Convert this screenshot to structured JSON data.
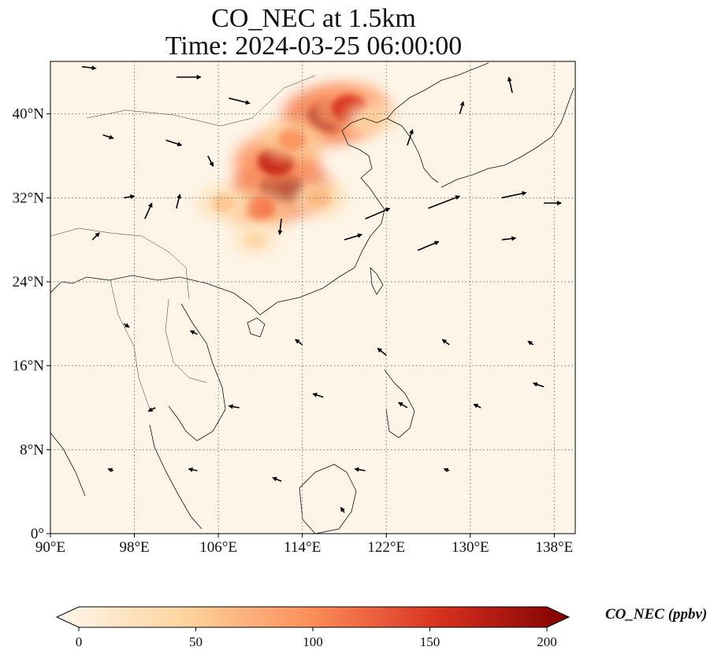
{
  "title": {
    "line1": "CO_NEC at 1.5km",
    "line2": "Time: 2024-03-25 06:00:00"
  },
  "map": {
    "extent": {
      "lon": [
        90,
        140
      ],
      "lat": [
        0,
        45
      ]
    },
    "lon_ticks": [
      {
        "v": 90,
        "label": "90°E"
      },
      {
        "v": 98,
        "label": "98°E"
      },
      {
        "v": 106,
        "label": "106°E"
      },
      {
        "v": 114,
        "label": "114°E"
      },
      {
        "v": 122,
        "label": "122°E"
      },
      {
        "v": 130,
        "label": "130°E"
      },
      {
        "v": 138,
        "label": "138°E"
      }
    ],
    "lat_ticks": [
      {
        "v": 0,
        "label": "0°"
      },
      {
        "v": 8,
        "label": "8°N"
      },
      {
        "v": 16,
        "label": "16°N"
      },
      {
        "v": 24,
        "label": "24°N"
      },
      {
        "v": 32,
        "label": "32°N"
      },
      {
        "v": 40,
        "label": "40°N"
      }
    ],
    "gridlines": true,
    "colormap": "OrRd"
  },
  "colorbar": {
    "label": "CO_NEC (ppbv)",
    "min": 0,
    "max": 200,
    "ticks": [
      0,
      50,
      100,
      150,
      200
    ],
    "colors": [
      "#fff7ec",
      "#fdd49e",
      "#fc8d59",
      "#d7301f",
      "#7f0000"
    ]
  },
  "chart_data": {
    "type": "heatmap",
    "variable": "CO_NEC",
    "units": "ppbv",
    "level": "1.5km",
    "time": "2024-03-25 06:00:00",
    "plumes": [
      {
        "lon": 116.5,
        "lat": 39.8,
        "value": 185
      },
      {
        "lon": 118.5,
        "lat": 40.5,
        "value": 150
      },
      {
        "lon": 112.0,
        "lat": 33.0,
        "value": 200
      },
      {
        "lon": 111.5,
        "lat": 35.5,
        "value": 160
      },
      {
        "lon": 110.0,
        "lat": 31.0,
        "value": 110
      },
      {
        "lon": 113.0,
        "lat": 37.5,
        "value": 95
      },
      {
        "lon": 106.5,
        "lat": 31.5,
        "value": 60
      },
      {
        "lon": 115.5,
        "lat": 32.0,
        "value": 70
      },
      {
        "lon": 120.5,
        "lat": 39.5,
        "value": 55
      },
      {
        "lon": 109.5,
        "lat": 28.0,
        "value": 45
      }
    ],
    "wind_vectors": [
      {
        "lon": 93,
        "lat": 44.5,
        "u": 8,
        "v": -1
      },
      {
        "lon": 102,
        "lat": 43.5,
        "u": 14,
        "v": 0
      },
      {
        "lon": 107,
        "lat": 41.5,
        "u": 12,
        "v": -3
      },
      {
        "lon": 95,
        "lat": 38,
        "u": 6,
        "v": -2
      },
      {
        "lon": 101,
        "lat": 37.5,
        "u": 9,
        "v": -3
      },
      {
        "lon": 105,
        "lat": 36,
        "u": 3,
        "v": -6
      },
      {
        "lon": 97,
        "lat": 32,
        "u": 6,
        "v": 1
      },
      {
        "lon": 99,
        "lat": 30,
        "u": 4,
        "v": 9
      },
      {
        "lon": 102,
        "lat": 31,
        "u": 2,
        "v": 8
      },
      {
        "lon": 94,
        "lat": 28,
        "u": 4,
        "v": 4
      },
      {
        "lon": 112,
        "lat": 30,
        "u": -1,
        "v": -9
      },
      {
        "lon": 120,
        "lat": 30,
        "u": 14,
        "v": 6
      },
      {
        "lon": 126,
        "lat": 31,
        "u": 18,
        "v": 7
      },
      {
        "lon": 133,
        "lat": 32,
        "u": 14,
        "v": 3
      },
      {
        "lon": 137,
        "lat": 31.5,
        "u": 10,
        "v": 0
      },
      {
        "lon": 124,
        "lat": 37,
        "u": 3,
        "v": 9
      },
      {
        "lon": 129,
        "lat": 40,
        "u": 2,
        "v": 7
      },
      {
        "lon": 134,
        "lat": 42,
        "u": -2,
        "v": 9
      },
      {
        "lon": 118,
        "lat": 28,
        "u": 10,
        "v": 3
      },
      {
        "lon": 125,
        "lat": 27,
        "u": 12,
        "v": 5
      },
      {
        "lon": 133,
        "lat": 28,
        "u": 8,
        "v": 1
      },
      {
        "lon": 97,
        "lat": 20,
        "u": 3,
        "v": -2
      },
      {
        "lon": 104,
        "lat": 19,
        "u": -4,
        "v": 2
      },
      {
        "lon": 114,
        "lat": 18,
        "u": -4,
        "v": 3
      },
      {
        "lon": 122,
        "lat": 17,
        "u": -5,
        "v": 4
      },
      {
        "lon": 128,
        "lat": 18,
        "u": -4,
        "v": 3
      },
      {
        "lon": 136,
        "lat": 18,
        "u": -3,
        "v": 2
      },
      {
        "lon": 100,
        "lat": 12,
        "u": -4,
        "v": -2
      },
      {
        "lon": 108,
        "lat": 12,
        "u": -6,
        "v": 1
      },
      {
        "lon": 116,
        "lat": 13,
        "u": -6,
        "v": 2
      },
      {
        "lon": 124,
        "lat": 12,
        "u": -5,
        "v": 3
      },
      {
        "lon": 131,
        "lat": 12,
        "u": -4,
        "v": 2
      },
      {
        "lon": 137,
        "lat": 14,
        "u": -6,
        "v": 2
      },
      {
        "lon": 96,
        "lat": 6,
        "u": -3,
        "v": 1
      },
      {
        "lon": 104,
        "lat": 6,
        "u": -5,
        "v": 1
      },
      {
        "lon": 112,
        "lat": 5,
        "u": -5,
        "v": 2
      },
      {
        "lon": 120,
        "lat": 6,
        "u": -6,
        "v": 1
      },
      {
        "lon": 128,
        "lat": 6,
        "u": -3,
        "v": 1
      },
      {
        "lon": 118,
        "lat": 2,
        "u": -2,
        "v": 3
      }
    ]
  }
}
